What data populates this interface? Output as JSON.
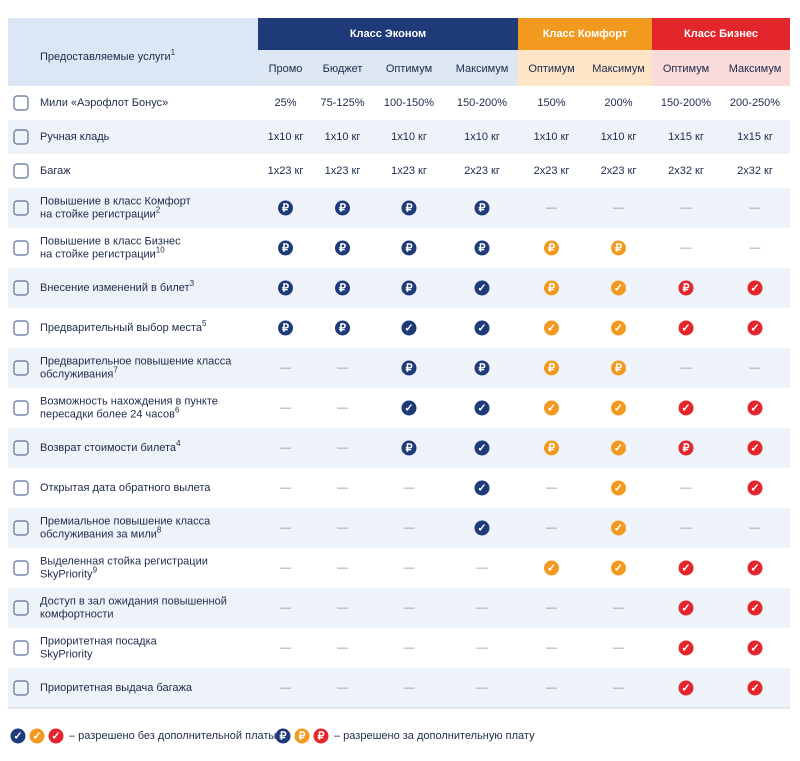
{
  "header": {
    "services": "Предоставляемые услуги",
    "services_note": "1",
    "classes": [
      {
        "name": "Класс Эконом",
        "fares": [
          "Промо",
          "Бюджет",
          "Оптимум",
          "Максимум"
        ]
      },
      {
        "name": "Класс Комфорт",
        "fares": [
          "Оптимум",
          "Максимум"
        ]
      },
      {
        "name": "Класс Бизнес",
        "fares": [
          "Оптимум",
          "Максимум"
        ]
      }
    ]
  },
  "table": {
    "rows": [
      {
        "label": [
          "Мили «Аэрофлот Бонус»"
        ],
        "cells": [
          "25%",
          "75-125%",
          "100-150%",
          "150-200%",
          "150%",
          "200%",
          "150-200%",
          "200-250%"
        ]
      },
      {
        "label": [
          "Ручная кладь"
        ],
        "cells": [
          "1x10 кг",
          "1x10 кг",
          "1x10 кг",
          "1x10 кг",
          "1x10 кг",
          "1x10 кг",
          "1x15 кг",
          "1x15 кг"
        ]
      },
      {
        "label": [
          "Багаж"
        ],
        "cells": [
          "1x23 кг",
          "1x23 кг",
          "1x23 кг",
          "2x23 кг",
          "2x23 кг",
          "2x23 кг",
          "2x32 кг",
          "2x32 кг"
        ]
      },
      {
        "label": [
          "Повышение в класс Комфорт",
          "на стойке регистрации"
        ],
        "note": "2",
        "cells": [
          "₽",
          "₽",
          "₽",
          "₽",
          "—",
          "—",
          "—",
          "—"
        ]
      },
      {
        "label": [
          "Повышение в класс Бизнес",
          "на стойке регистрации"
        ],
        "note": "10",
        "cells": [
          "₽",
          "₽",
          "₽",
          "₽",
          "₽",
          "₽",
          "—",
          "—"
        ]
      },
      {
        "label": [
          "Внесение изменений в билет"
        ],
        "note": "3",
        "cells": [
          "₽",
          "₽",
          "₽",
          "✓",
          "₽",
          "✓",
          "₽",
          "✓"
        ]
      },
      {
        "label": [
          "Предварительный выбор места"
        ],
        "note": "5",
        "cells": [
          "₽",
          "₽",
          "✓",
          "✓",
          "✓",
          "✓",
          "✓",
          "✓"
        ]
      },
      {
        "label": [
          "Предварительное повышение класса",
          "обслуживания"
        ],
        "note": "7",
        "cells": [
          "—",
          "—",
          "₽",
          "₽",
          "₽",
          "₽",
          "—",
          "—"
        ]
      },
      {
        "label": [
          "Возможность нахождения в пункте",
          "пересадки более 24 часов"
        ],
        "note": "6",
        "cells": [
          "—",
          "—",
          "✓",
          "✓",
          "✓",
          "✓",
          "✓",
          "✓"
        ]
      },
      {
        "label": [
          "Возврат стоимости билета"
        ],
        "note": "4",
        "cells": [
          "—",
          "—",
          "₽",
          "✓",
          "₽",
          "✓",
          "₽",
          "✓"
        ]
      },
      {
        "label": [
          "Открытая дата обратного вылета"
        ],
        "cells": [
          "—",
          "—",
          "—",
          "✓",
          "—",
          "✓",
          "—",
          "✓"
        ]
      },
      {
        "label": [
          "Премиальное повышение класса",
          "обслуживания за мили"
        ],
        "note": "8",
        "cells": [
          "—",
          "—",
          "—",
          "✓",
          "—",
          "✓",
          "—",
          "—"
        ]
      },
      {
        "label": [
          "Выделенная стойка регистрации",
          "SkyPriority"
        ],
        "note": "9",
        "cells": [
          "—",
          "—",
          "—",
          "—",
          "✓",
          "✓",
          "✓",
          "✓"
        ]
      },
      {
        "label": [
          "Доступ в зал ожидания повышенной",
          "комфортности"
        ],
        "cells": [
          "—",
          "—",
          "—",
          "—",
          "—",
          "—",
          "✓",
          "✓"
        ]
      },
      {
        "label": [
          "Приоритетная посадка",
          "SkyPriority"
        ],
        "cells": [
          "—",
          "—",
          "—",
          "—",
          "—",
          "—",
          "✓",
          "✓"
        ]
      },
      {
        "label": [
          "Приоритетная выдача багажа"
        ],
        "cells": [
          "—",
          "—",
          "—",
          "—",
          "—",
          "—",
          "✓",
          "✓"
        ]
      }
    ]
  },
  "legend": {
    "free": {
      "symbol": "✓",
      "text": "– разрешено без дополнительной платы"
    },
    "paid": {
      "symbol": "₽",
      "text": "– разрешено за дополнительную плату"
    }
  }
}
